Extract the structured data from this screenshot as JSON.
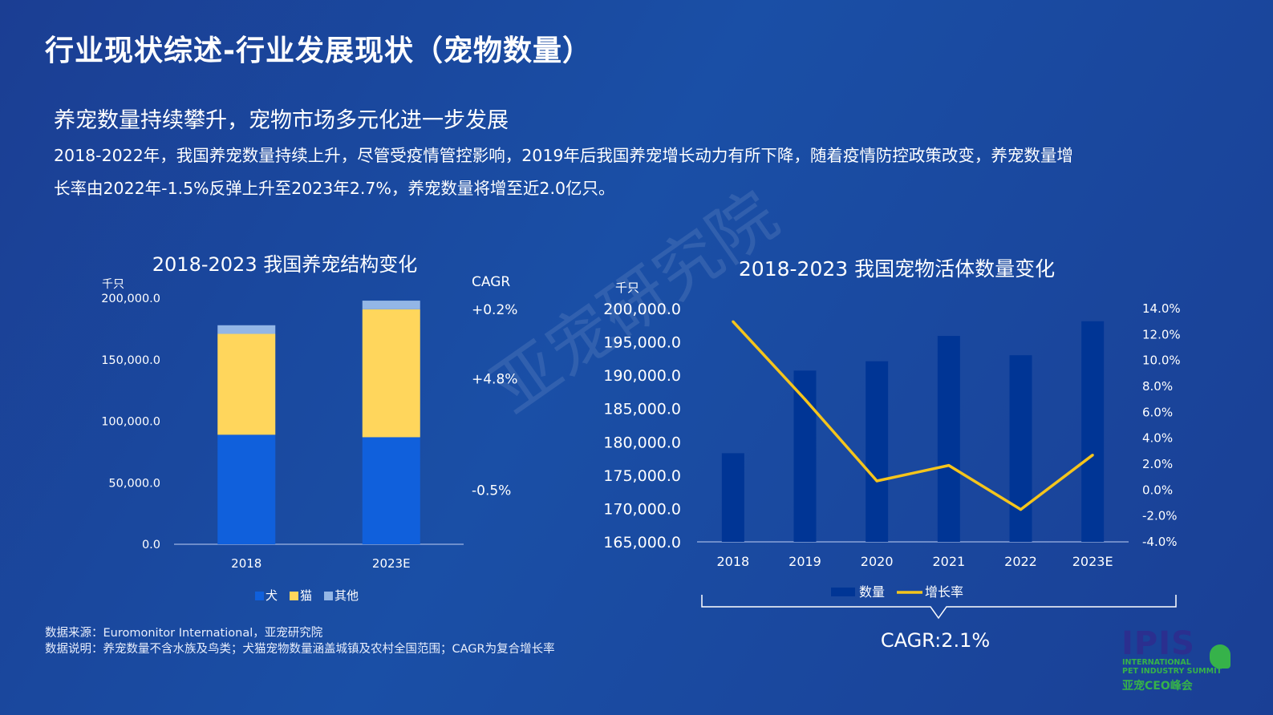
{
  "page": {
    "title": "行业现状综述-行业发展现状（宠物数量）",
    "headline": "养宠数量持续攀升，宠物市场多元化进一步发展",
    "summary_lines": [
      "2018-2022年，我国养宠数量持续上升，尽管受疫情管控影响，2019年后我国养宠增长动力有所下降，随着疫情防控政策改变，养宠数量增",
      "长率由2022年-1.5%反弹上升至2023年2.7%，养宠数量将增至近2.0亿只。"
    ],
    "watermark": "亚宠研究院",
    "footnotes": [
      "数据来源：Euromonitor International，亚宠研究院",
      "数据说明：养宠数量不含水族及鸟类；犬猫宠物数量涵盖城镇及农村全国范围；CAGR为复合增长率"
    ],
    "logo": {
      "main": "IPIS",
      "sub_lines": [
        "INTERNATIONAL",
        "PET INDUSTRY SUMMIT"
      ],
      "cn": "亚宠CEO峰会"
    }
  },
  "colors": {
    "dog": "#1060dc",
    "cat": "#ffd65c",
    "other": "#93b6e6",
    "quantity_bar": "#003595",
    "growth_line": "#f5c51c",
    "axis": "#9fb5e3"
  },
  "chart_data": [
    {
      "type": "bar",
      "stacked": true,
      "title": "2018-2023 我国养宠结构变化",
      "ylabel": "千只",
      "categories": [
        "2018",
        "2023E"
      ],
      "ylim": [
        0,
        200000
      ],
      "yticks": [
        "200,000.0",
        "150,000.0",
        "100,000.0",
        "50,000.0",
        "0.0"
      ],
      "series": [
        {
          "name": "犬",
          "color_key": "dog",
          "values": [
            89000,
            87000
          ]
        },
        {
          "name": "猫",
          "color_key": "cat",
          "values": [
            82000,
            104000
          ]
        },
        {
          "name": "其他",
          "color_key": "other",
          "values": [
            7000,
            7000
          ]
        }
      ],
      "cagr_header": "CAGR",
      "cagr_labels": [
        {
          "series": "其他",
          "text": "+0.2%"
        },
        {
          "series": "猫",
          "text": "+4.8%"
        },
        {
          "series": "犬",
          "text": "-0.5%"
        }
      ],
      "legend_position": "bottom"
    },
    {
      "type": "bar",
      "combo_line": true,
      "title": "2018-2023 我国宠物活体数量变化",
      "ylabel": "千只",
      "categories": [
        "2018",
        "2019",
        "2020",
        "2021",
        "2022",
        "2023E"
      ],
      "ylim": [
        165000,
        200000
      ],
      "yticks": [
        "200,000.0",
        "195,000.0",
        "190,000.0",
        "185,000.0",
        "180,000.0",
        "175,000.0",
        "170,000.0",
        "165,000.0"
      ],
      "y2lim": [
        -4.0,
        14.0
      ],
      "y2ticks": [
        "14.0%",
        "12.0%",
        "10.0%",
        "8.0%",
        "6.0%",
        "4.0%",
        "2.0%",
        "0.0%",
        "-2.0%",
        "-4.0%"
      ],
      "series": [
        {
          "name": "数量",
          "kind": "bar",
          "color_key": "quantity_bar",
          "values": [
            178300,
            190700,
            192100,
            195900,
            193000,
            198100
          ]
        },
        {
          "name": "增长率",
          "kind": "line",
          "axis": "y2",
          "color_key": "growth_line",
          "values": [
            13.0,
            7.0,
            0.7,
            1.9,
            -1.5,
            2.7
          ]
        }
      ],
      "cagr_summary": "CAGR:2.1%",
      "legend_position": "bottom"
    }
  ]
}
